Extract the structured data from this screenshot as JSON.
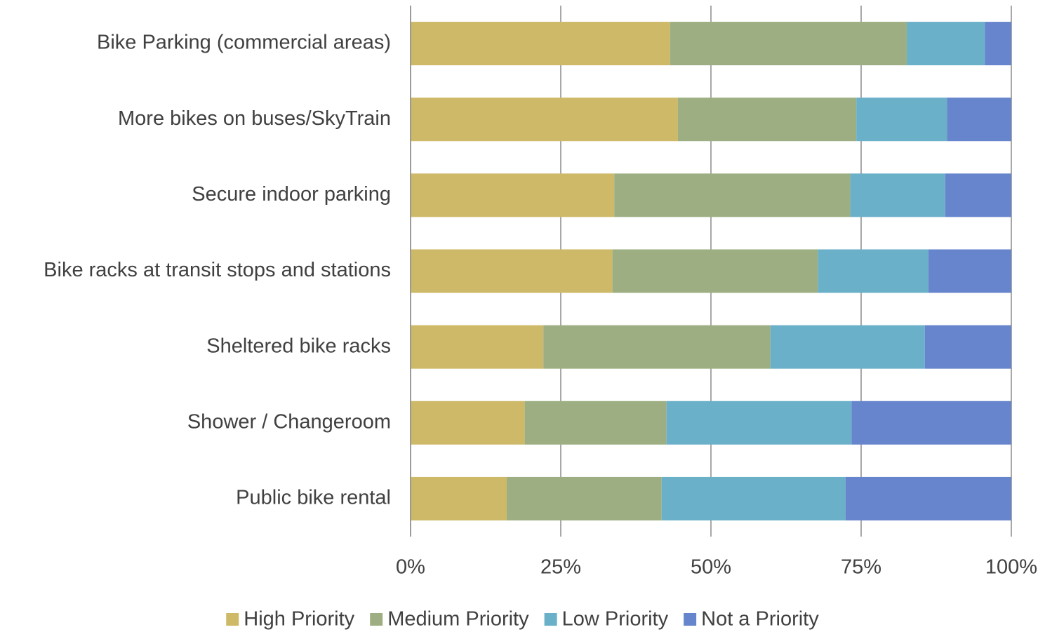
{
  "chart_data": {
    "type": "stacked-bar-horizontal",
    "categories": [
      "Bike Parking (commercial areas)",
      "More bikes on buses/SkyTrain",
      "Secure indoor parking",
      "Bike racks at transit stops and stations",
      "Sheltered bike racks",
      "Shower / Changeroom",
      "Public bike rental"
    ],
    "series": [
      {
        "name": "High Priority",
        "color": "#cdb967",
        "values": [
          43.2,
          44.5,
          33.9,
          33.6,
          22.1,
          19.0,
          16.0
        ]
      },
      {
        "name": "Medium Priority",
        "color": "#9daf82",
        "values": [
          39.4,
          29.7,
          39.3,
          34.2,
          37.8,
          23.6,
          25.8
        ]
      },
      {
        "name": "Low Priority",
        "color": "#6ab0c8",
        "values": [
          13.0,
          15.1,
          15.8,
          18.4,
          25.7,
          30.8,
          30.6
        ]
      },
      {
        "name": "Not a Priority",
        "color": "#6785cc",
        "values": [
          4.4,
          10.7,
          11.0,
          13.8,
          14.4,
          26.6,
          27.6
        ]
      }
    ],
    "xlim": [
      0,
      100
    ],
    "xticks": [
      {
        "value": 0,
        "label": "0%"
      },
      {
        "value": 25,
        "label": "25%"
      },
      {
        "value": 50,
        "label": "50%"
      },
      {
        "value": 75,
        "label": "75%"
      },
      {
        "value": 100,
        "label": "100%"
      }
    ],
    "grid": true,
    "legend": "bottom"
  }
}
